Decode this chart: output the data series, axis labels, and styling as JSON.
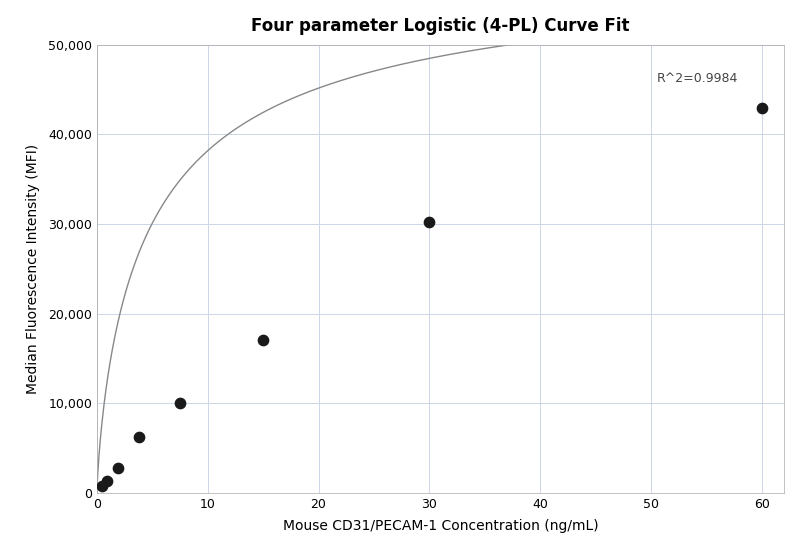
{
  "title": "Four parameter Logistic (4-PL) Curve Fit",
  "xlabel": "Mouse CD31/PECAM-1 Concentration (ng/mL)",
  "ylabel": "Median Fluorescence Intensity (MFI)",
  "scatter_x": [
    0.469,
    0.938,
    1.875,
    3.75,
    7.5,
    15.0,
    30.0,
    60.0
  ],
  "scatter_y": [
    800,
    1300,
    2800,
    6200,
    10000,
    17000,
    30200,
    43000
  ],
  "r_squared": "R^2=0.9984",
  "r_squared_x": 50.5,
  "r_squared_y": 45500,
  "xlim": [
    0,
    62
  ],
  "ylim": [
    0,
    50000
  ],
  "xticks": [
    0,
    10,
    20,
    30,
    40,
    50,
    60
  ],
  "yticks": [
    0,
    10000,
    20000,
    30000,
    40000,
    50000
  ],
  "ytick_labels": [
    "0",
    "10,000",
    "20,000",
    "30,000",
    "40,000",
    "50,000"
  ],
  "scatter_color": "#1a1a1a",
  "curve_color": "#888888",
  "background_color": "#ffffff",
  "grid_color": "#ccd6e8",
  "title_fontsize": 12,
  "label_fontsize": 10,
  "tick_fontsize": 9,
  "annotation_fontsize": 9,
  "figsize": [
    8.08,
    5.6
  ],
  "dpi": 100
}
